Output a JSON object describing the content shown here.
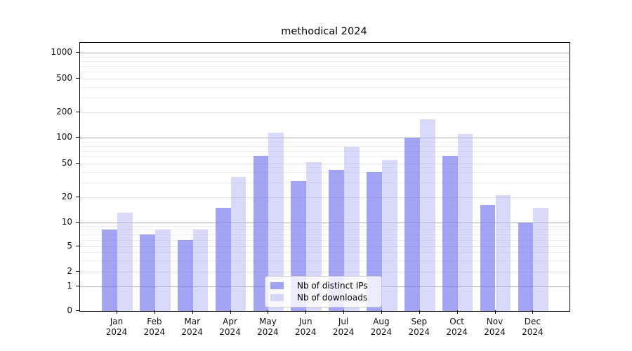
{
  "title": "methodical 2024",
  "colors": {
    "ips_bar_rendered": "#a4a4f5",
    "downloads_bar_rendered": "#d9d9f9",
    "grid_major": "#b0b0b0",
    "grid_minor": "#ededed",
    "axis": "#000000",
    "background": "#ffffff"
  },
  "chart_data": {
    "type": "bar",
    "title": "methodical 2024",
    "categories": [
      "Jan 2024",
      "Feb 2024",
      "Mar 2024",
      "Apr 2024",
      "May 2024",
      "Jun 2024",
      "Jul 2024",
      "Aug 2024",
      "Sep 2024",
      "Oct 2024",
      "Nov 2024",
      "Dec 2024"
    ],
    "series": [
      {
        "name": "Nb of distinct IPs",
        "color": "#a4a4f5",
        "fill": "rgba(117,117,240,0.66)",
        "values": [
          8,
          7,
          6,
          15,
          62,
          31,
          42,
          40,
          100,
          61,
          16,
          10
        ]
      },
      {
        "name": "Nb of downloads",
        "color": "#d9d9f9",
        "fill": "rgba(172,172,242,0.46)",
        "values": [
          13,
          8,
          8,
          35,
          114,
          52,
          78,
          55,
          165,
          110,
          21,
          15
        ]
      }
    ],
    "xlabel": "",
    "ylabel": "",
    "yscale": "symlog",
    "yticks": [
      0,
      1,
      2,
      5,
      10,
      20,
      50,
      100,
      200,
      500,
      1000
    ],
    "ylim": [
      0,
      1300
    ],
    "grid": true,
    "legend_position": "lower center"
  }
}
